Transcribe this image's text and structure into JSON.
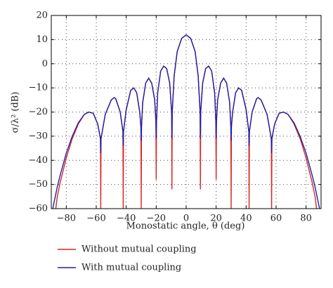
{
  "chart_data": {
    "type": "line",
    "xlabel": "Monostatic angle, θ (deg)",
    "ylabel": "σ/λ² (dB)",
    "x": [
      -89,
      -87,
      -86,
      -84,
      -80,
      -76,
      -72,
      -68,
      -65,
      -62,
      -59,
      -57.2,
      -57,
      -56.8,
      -54,
      -50,
      -48,
      -47,
      -44,
      -42.2,
      -42,
      -41.8,
      -40,
      -37,
      -35,
      -33,
      -31,
      -30.2,
      -30,
      -29.8,
      -29,
      -27,
      -25,
      -23,
      -21,
      -20.2,
      -20,
      -19.8,
      -19,
      -17,
      -15,
      -13,
      -11,
      -9.7,
      -9.5,
      -9.3,
      -8,
      -6,
      -3,
      0,
      3,
      6,
      8,
      9.3,
      9.5,
      9.7,
      11,
      13,
      15,
      17,
      19,
      19.8,
      20,
      20.2,
      21,
      23,
      25,
      27,
      29,
      29.8,
      30,
      30.2,
      31,
      33,
      35,
      37,
      40,
      41.8,
      42,
      42.2,
      44,
      47,
      48,
      50,
      54,
      56.8,
      57,
      57.2,
      59,
      62,
      65,
      68,
      72,
      76,
      80,
      84,
      86,
      87,
      89
    ],
    "series": [
      {
        "name": "Without mutual coupling",
        "color": "#d62728",
        "values": [
          null,
          -60,
          -55,
          -49,
          -39,
          -31,
          -25,
          -21,
          -20,
          -20.5,
          -25,
          -31,
          -60,
          -31,
          -21,
          -15,
          -14,
          -14.5,
          -20,
          -28,
          -60,
          -28,
          -19,
          -11,
          -10,
          -12,
          -20,
          -26,
          -60,
          -26,
          -16,
          -8,
          -6,
          -8,
          -15,
          -24,
          -48,
          -24,
          -12,
          -3,
          -1,
          -2,
          -8,
          -20,
          -52,
          -20,
          -5,
          5,
          10.5,
          12,
          10.5,
          5,
          -5,
          -20,
          -52,
          -20,
          -8,
          -2,
          -1,
          -3,
          -12,
          -24,
          -48,
          -24,
          -15,
          -8,
          -6,
          -8,
          -16,
          -26,
          -60,
          -26,
          -20,
          -12,
          -10,
          -11,
          -19,
          -28,
          -60,
          -28,
          -20,
          -14.5,
          -14,
          -15,
          -21,
          -31,
          -60,
          -31,
          -25,
          -20.5,
          -20,
          -21,
          -25,
          -31,
          -39,
          -49,
          -55,
          -60,
          null
        ]
      },
      {
        "name": "With mutual coupling",
        "color": "#1f1fa8",
        "values": [
          -60,
          -54,
          -51,
          -46,
          -37,
          -30,
          -24.5,
          -21,
          -20,
          -20.5,
          -25,
          -31,
          -37,
          -31,
          -21,
          -15,
          -14,
          -14.5,
          -20,
          -28,
          -34,
          -28,
          -19,
          -11,
          -10,
          -12,
          -20,
          -26,
          -32,
          -26,
          -16,
          -8,
          -6,
          -8,
          -15,
          -24,
          -31,
          -24,
          -12,
          -3,
          -1,
          -2,
          -8,
          -20,
          -31,
          -20,
          -5,
          5,
          10.5,
          12,
          10.5,
          5,
          -5,
          -20,
          -31,
          -20,
          -8,
          -2,
          -1,
          -3,
          -12,
          -24,
          -31,
          -24,
          -15,
          -8,
          -6,
          -8,
          -16,
          -26,
          -32,
          -26,
          -20,
          -12,
          -10,
          -11,
          -19,
          -28,
          -34,
          -28,
          -20,
          -14.5,
          -14,
          -15,
          -21,
          -31,
          -37,
          -31,
          -25,
          -20.5,
          -20,
          -21,
          -24.5,
          -30,
          -37,
          -46,
          -51,
          -54,
          -60
        ]
      }
    ],
    "xlim": [
      -90,
      90
    ],
    "ylim": [
      -60,
      20
    ],
    "xticks": [
      {
        "value": -80,
        "label": "−80"
      },
      {
        "value": -60,
        "label": "−60"
      },
      {
        "value": -40,
        "label": "−40"
      },
      {
        "value": -20,
        "label": "−20"
      },
      0,
      20,
      40,
      60,
      80
    ],
    "yticks": [
      {
        "value": -60,
        "label": "−60"
      },
      {
        "value": -50,
        "label": "−50"
      },
      {
        "value": -40,
        "label": "−40"
      },
      {
        "value": -30,
        "label": "−30"
      },
      {
        "value": -20,
        "label": "−20"
      },
      {
        "value": -10,
        "label": "−10"
      },
      0,
      10,
      20
    ],
    "grid": true,
    "legend": "below"
  }
}
